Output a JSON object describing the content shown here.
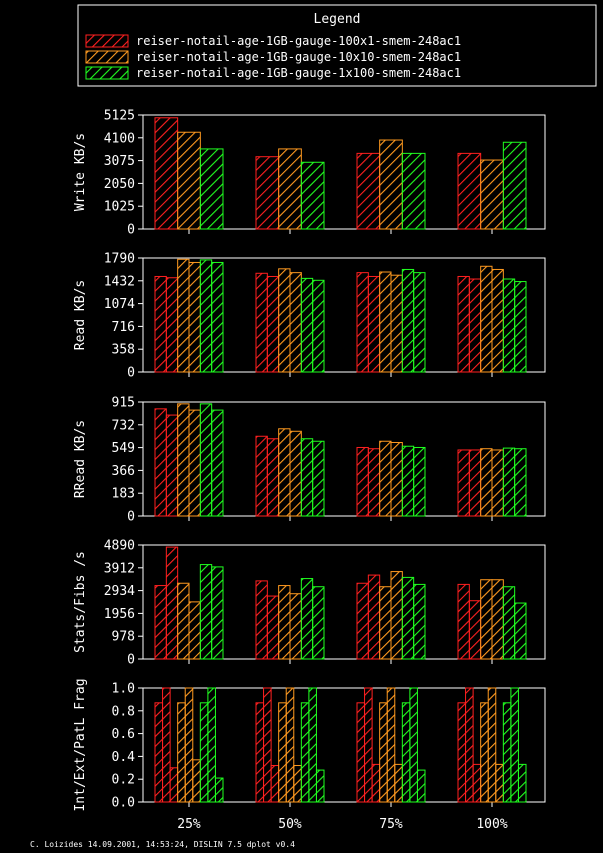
{
  "legend": {
    "title": "Legend",
    "entries": [
      {
        "label": "reiser-notail-age-1GB-gauge-100x1-smem-248ac1",
        "color": "#ff2020"
      },
      {
        "label": "reiser-notail-age-1GB-gauge-10x10-smem-248ac1",
        "color": "#ff9a20"
      },
      {
        "label": "reiser-notail-age-1GB-gauge-1x100-smem-248ac1",
        "color": "#20ff20"
      }
    ]
  },
  "footer": "C. Loizides 14.09.2001, 14:53:24, DISLIN 7.5 dplot v0.4",
  "chart_data": [
    {
      "type": "bar",
      "ylabel": "Write KB/s",
      "categories": [
        "25%",
        "50%",
        "75%",
        "100%"
      ],
      "ylim": [
        0,
        5125
      ],
      "yticks": [
        "0",
        "1025",
        "2050",
        "3075",
        "4100",
        "5125"
      ],
      "series": [
        {
          "name": "reiser-notail-age-1GB-gauge-100x1-smem-248ac1",
          "values": [
            5000,
            3250,
            3400,
            3400
          ]
        },
        {
          "name": "reiser-notail-age-1GB-gauge-10x10-smem-248ac1",
          "values": [
            4350,
            3600,
            4000,
            3100
          ]
        },
        {
          "name": "reiser-notail-age-1GB-gauge-1x100-smem-248ac1",
          "values": [
            3600,
            3000,
            3400,
            3900
          ]
        }
      ]
    },
    {
      "type": "bar",
      "ylabel": "Read KB/s",
      "categories": [
        "25%",
        "50%",
        "75%",
        "100%"
      ],
      "ylim": [
        0,
        1790
      ],
      "yticks": [
        "0",
        "358",
        "716",
        "1074",
        "1432",
        "1790"
      ],
      "series": [
        {
          "name": "reiser-notail-age-1GB-gauge-100x1-smem-248ac1",
          "values": [
            1500,
            1550,
            1560,
            1500
          ]
        },
        {
          "name": "reiser-notail-age-1GB-gauge-100x1-smem-248ac1",
          "values": [
            1480,
            1500,
            1500,
            1460
          ]
        },
        {
          "name": "reiser-notail-age-1GB-gauge-10x10-smem-248ac1",
          "values": [
            1770,
            1620,
            1570,
            1660
          ]
        },
        {
          "name": "reiser-notail-age-1GB-gauge-10x10-smem-248ac1",
          "values": [
            1720,
            1560,
            1520,
            1610
          ]
        },
        {
          "name": "reiser-notail-age-1GB-gauge-1x100-smem-248ac1",
          "values": [
            1760,
            1470,
            1610,
            1460
          ]
        },
        {
          "name": "reiser-notail-age-1GB-gauge-1x100-smem-248ac1",
          "values": [
            1720,
            1440,
            1560,
            1420
          ]
        }
      ]
    },
    {
      "type": "bar",
      "ylabel": "RRead KB/s",
      "categories": [
        "25%",
        "50%",
        "75%",
        "100%"
      ],
      "ylim": [
        0,
        915
      ],
      "yticks": [
        "0",
        "183",
        "366",
        "549",
        "732",
        "915"
      ],
      "series": [
        {
          "name": "reiser-notail-age-1GB-gauge-100x1-smem-248ac1",
          "values": [
            860,
            640,
            550,
            530
          ]
        },
        {
          "name": "reiser-notail-age-1GB-gauge-100x1-smem-248ac1",
          "values": [
            810,
            620,
            540,
            530
          ]
        },
        {
          "name": "reiser-notail-age-1GB-gauge-10x10-smem-248ac1",
          "values": [
            900,
            700,
            600,
            540
          ]
        },
        {
          "name": "reiser-notail-age-1GB-gauge-10x10-smem-248ac1",
          "values": [
            850,
            680,
            590,
            530
          ]
        },
        {
          "name": "reiser-notail-age-1GB-gauge-1x100-smem-248ac1",
          "values": [
            900,
            620,
            560,
            545
          ]
        },
        {
          "name": "reiser-notail-age-1GB-gauge-1x100-smem-248ac1",
          "values": [
            850,
            600,
            550,
            540
          ]
        }
      ]
    },
    {
      "type": "bar",
      "ylabel": "Stats/Fibs /s",
      "categories": [
        "25%",
        "50%",
        "75%",
        "100%"
      ],
      "ylim": [
        0,
        4890
      ],
      "yticks": [
        "0",
        "978",
        "1956",
        "2934",
        "3912",
        "4890"
      ],
      "series": [
        {
          "name": "reiser-notail-age-1GB-gauge-100x1-smem-248ac1",
          "values": [
            3150,
            3350,
            3250,
            3200
          ]
        },
        {
          "name": "reiser-notail-age-1GB-gauge-100x1-smem-248ac1",
          "values": [
            4800,
            2700,
            3600,
            2500
          ]
        },
        {
          "name": "reiser-notail-age-1GB-gauge-10x10-smem-248ac1",
          "values": [
            3250,
            3150,
            3100,
            3400
          ]
        },
        {
          "name": "reiser-notail-age-1GB-gauge-10x10-smem-248ac1",
          "values": [
            2450,
            2800,
            3750,
            3400
          ]
        },
        {
          "name": "reiser-notail-age-1GB-gauge-1x100-smem-248ac1",
          "values": [
            4050,
            3450,
            3500,
            3100
          ]
        },
        {
          "name": "reiser-notail-age-1GB-gauge-1x100-smem-248ac1",
          "values": [
            3950,
            3100,
            3200,
            2400
          ]
        }
      ]
    },
    {
      "type": "bar",
      "ylabel": "Int/Ext/PatL Frag",
      "categories": [
        "25%",
        "50%",
        "75%",
        "100%"
      ],
      "ylim": [
        0,
        1.0
      ],
      "yticks": [
        "0.0",
        "0.2",
        "0.4",
        "0.6",
        "0.8",
        "1.0"
      ],
      "series": [
        {
          "name": "reiser-notail-age-1GB-gauge-100x1-smem-248ac1",
          "values": [
            0.87,
            0.87,
            0.87,
            0.87
          ]
        },
        {
          "name": "reiser-notail-age-1GB-gauge-100x1-smem-248ac1",
          "values": [
            1.0,
            1.0,
            1.0,
            1.0
          ]
        },
        {
          "name": "reiser-notail-age-1GB-gauge-100x1-smem-248ac1",
          "values": [
            0.3,
            0.32,
            0.33,
            0.33
          ]
        },
        {
          "name": "reiser-notail-age-1GB-gauge-10x10-smem-248ac1",
          "values": [
            0.87,
            0.87,
            0.87,
            0.87
          ]
        },
        {
          "name": "reiser-notail-age-1GB-gauge-10x10-smem-248ac1",
          "values": [
            1.0,
            1.0,
            1.0,
            1.0
          ]
        },
        {
          "name": "reiser-notail-age-1GB-gauge-10x10-smem-248ac1",
          "values": [
            0.37,
            0.32,
            0.33,
            0.33
          ]
        },
        {
          "name": "reiser-notail-age-1GB-gauge-1x100-smem-248ac1",
          "values": [
            0.87,
            0.87,
            0.87,
            0.87
          ]
        },
        {
          "name": "reiser-notail-age-1GB-gauge-1x100-smem-248ac1",
          "values": [
            1.0,
            1.0,
            1.0,
            1.0
          ]
        },
        {
          "name": "reiser-notail-age-1GB-gauge-1x100-smem-248ac1",
          "values": [
            0.21,
            0.28,
            0.28,
            0.33
          ]
        }
      ]
    }
  ]
}
